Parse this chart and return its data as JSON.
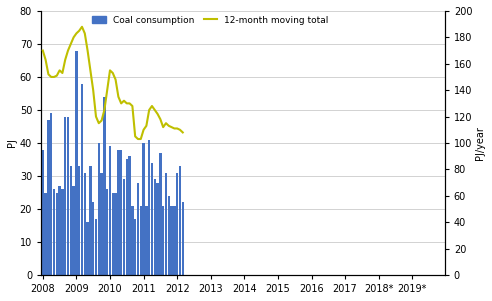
{
  "bar_color": "#4472C4",
  "line_color": "#BFBF00",
  "ylabel_left": "PJ",
  "ylabel_right": "PJ/year",
  "ylim_left": [
    0,
    80
  ],
  "ylim_right": [
    0,
    200
  ],
  "yticks_left": [
    0,
    10,
    20,
    30,
    40,
    50,
    60,
    70,
    80
  ],
  "yticks_right": [
    0,
    20,
    40,
    60,
    80,
    100,
    120,
    140,
    160,
    180,
    200
  ],
  "xtick_labels": [
    "2008",
    "2009",
    "2010",
    "2011",
    "2012",
    "2013",
    "2014",
    "2015",
    "2016",
    "2017",
    "2018*",
    "2019*"
  ],
  "xtick_positions": [
    0,
    12,
    24,
    36,
    48,
    60,
    72,
    84,
    96,
    108,
    120,
    132
  ],
  "legend_labels": [
    "Coal consumption",
    "12-month moving total"
  ],
  "bar_values": [
    38,
    25,
    47,
    49,
    26,
    25,
    27,
    26,
    48,
    48,
    33,
    27,
    68,
    33,
    58,
    31,
    16,
    33,
    22,
    17,
    40,
    31,
    54,
    26,
    39,
    25,
    25,
    38,
    38,
    29,
    35,
    36,
    21,
    17,
    28,
    21,
    40,
    21,
    41,
    34,
    29,
    28,
    37,
    21,
    31,
    24,
    21,
    21,
    31,
    33,
    22,
    0,
    0,
    0,
    0,
    0,
    0,
    0,
    0,
    0,
    0,
    0,
    0,
    0,
    0,
    0,
    0,
    0,
    0,
    0,
    0,
    0,
    0,
    0,
    0,
    0,
    0,
    0,
    0,
    0,
    0,
    0,
    0,
    0,
    0,
    0,
    0,
    0,
    0,
    0,
    0,
    0,
    0,
    0,
    0,
    0,
    0,
    0,
    0,
    0,
    0,
    0,
    0,
    0,
    0,
    0,
    0,
    0,
    0,
    0,
    0,
    0,
    0,
    0,
    0,
    0,
    0,
    0,
    0,
    0,
    0,
    0,
    0,
    0,
    0,
    0,
    0,
    0,
    0,
    0,
    0,
    0,
    0,
    0,
    0
  ],
  "line_x": [
    0,
    1,
    2,
    3,
    4,
    5,
    6,
    7,
    8,
    9,
    10,
    11,
    12,
    13,
    14,
    15,
    16,
    17,
    18,
    19,
    20,
    21,
    22,
    23,
    24,
    25,
    26,
    27,
    28,
    29,
    30,
    31,
    32,
    33,
    34,
    35,
    36,
    37,
    38,
    39,
    40,
    41,
    42,
    43,
    44,
    45,
    46,
    47,
    48,
    49,
    50
  ],
  "line_values": [
    170,
    163,
    152,
    150,
    150,
    151,
    155,
    153,
    163,
    170,
    175,
    180,
    183,
    185,
    188,
    183,
    170,
    155,
    140,
    120,
    115,
    117,
    125,
    140,
    155,
    153,
    148,
    135,
    130,
    132,
    130,
    130,
    128,
    105,
    103,
    103,
    110,
    113,
    125,
    128,
    125,
    122,
    118,
    112,
    115,
    113,
    112,
    111,
    111,
    110,
    108
  ],
  "n_months": 51,
  "grid_color": "#C0C0C0",
  "background_color": "#FFFFFF"
}
